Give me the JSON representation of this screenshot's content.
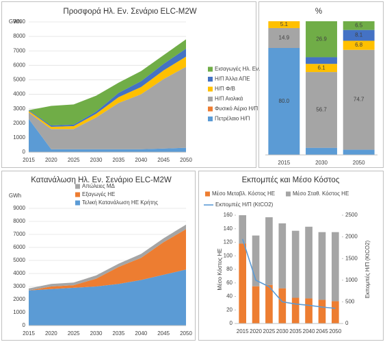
{
  "chart_data": [
    {
      "type": "area",
      "title": "Προσφορά Ηλ. Εν. Σενάριο ELC-M2W",
      "ylabel": "GWh",
      "categories": [
        "2015",
        "2020",
        "2025",
        "2030",
        "2035",
        "2040",
        "2045",
        "2050"
      ],
      "series": [
        {
          "name": "Πετρέλαιο Η/Π",
          "color": "#5b9bd5",
          "values": [
            2300,
            200,
            200,
            200,
            200,
            200,
            250,
            300
          ]
        },
        {
          "name": "Φυσικό Αέριο Η/Π",
          "color": "#ed7d31",
          "values": [
            0,
            0,
            0,
            0,
            0,
            0,
            0,
            0
          ]
        },
        {
          "name": "Η/Π Αιολικά",
          "color": "#a5a5a5",
          "values": [
            450,
            1400,
            1400,
            2200,
            3200,
            3800,
            4800,
            5600
          ]
        },
        {
          "name": "Η/Π Φ/Β",
          "color": "#ffc000",
          "values": [
            100,
            150,
            200,
            250,
            400,
            500,
            600,
            700
          ]
        },
        {
          "name": "Η/Π Άλλα ΑΠΕ",
          "color": "#4472c4",
          "values": [
            50,
            100,
            100,
            150,
            300,
            400,
            450,
            550
          ]
        },
        {
          "name": "Εισαγωγές Ηλ. Εν.",
          "color": "#70ad47",
          "values": [
            0,
            1350,
            1400,
            1100,
            700,
            700,
            600,
            650
          ]
        }
      ],
      "ylim": [
        0,
        9000
      ],
      "yticks": [
        0,
        1000,
        2000,
        3000,
        4000,
        5000,
        6000,
        7000,
        8000,
        9000
      ],
      "grid": true,
      "legend": "right"
    },
    {
      "type": "bar",
      "title": "%",
      "categories": [
        "2015",
        "2030",
        "2050"
      ],
      "series": [
        {
          "color": "#5b9bd5",
          "values": [
            80.0,
            5.3,
            3.9
          ],
          "value_labels": [
            "80.0",
            null,
            null
          ]
        },
        {
          "color": "#a5a5a5",
          "values": [
            14.9,
            56.7,
            74.7
          ],
          "value_labels": [
            "14.9",
            "56.7",
            "74.7"
          ]
        },
        {
          "color": "#ffc000",
          "values": [
            5.1,
            6.1,
            6.8
          ],
          "value_labels": [
            "5.1",
            "6.1",
            "6.8"
          ]
        },
        {
          "color": "#4472c4",
          "values": [
            0,
            5.0,
            8.1
          ],
          "value_labels": [
            null,
            null,
            "8.1"
          ]
        },
        {
          "color": "#70ad47",
          "values": [
            0,
            26.9,
            6.5
          ],
          "value_labels": [
            null,
            "26.9",
            "6.5"
          ]
        }
      ],
      "ylim": [
        0,
        100
      ]
    },
    {
      "type": "area",
      "title": "Κατανάλωση Ηλ. Εν. Σενάριο ELC-M2W",
      "ylabel": "GWh",
      "categories": [
        "2015",
        "2020",
        "2025",
        "2030",
        "2035",
        "2040",
        "2045",
        "2050"
      ],
      "series": [
        {
          "name": "Τελική Κατανάλωση ΗΕ Κρήτης",
          "color": "#5b9bd5",
          "values": [
            2700,
            2800,
            2900,
            3000,
            3200,
            3500,
            3900,
            4300
          ]
        },
        {
          "name": "Εξαγωγές ΗΕ",
          "color": "#ed7d31",
          "values": [
            0,
            200,
            200,
            600,
            1300,
            1700,
            2500,
            3100
          ]
        },
        {
          "name": "Απώλειες ΜΔ",
          "color": "#a5a5a5",
          "values": [
            150,
            200,
            200,
            250,
            250,
            300,
            300,
            350
          ]
        }
      ],
      "ylim": [
        0,
        9000
      ],
      "yticks": [
        0,
        1000,
        2000,
        3000,
        4000,
        5000,
        6000,
        7000,
        8000,
        9000
      ],
      "grid": true,
      "legend": "top-left"
    },
    {
      "type": "combo",
      "title": "Εκπομπές και Μέσο Κόστος",
      "ylabel": "Μέσο Κόστος ΗΕ",
      "y2label": "Εκπομπές Η/Π (KtCO2)",
      "categories": [
        "2015",
        "2020",
        "2025",
        "2030",
        "2035",
        "2040",
        "2045",
        "2050"
      ],
      "series": [
        {
          "name": "Μέσο Μεταβλ. Κόστος ΗΕ",
          "color": "#ed7d31",
          "values": [
            118,
            55,
            57,
            52,
            38,
            37,
            35,
            33
          ]
        },
        {
          "name": "Μέσο Σταθ. Κόστος ΗΕ",
          "color": "#a5a5a5",
          "values": [
            42,
            75,
            100,
            96,
            99,
            106,
            100,
            102
          ]
        },
        {
          "name": "Εκπομπές Η/Π (KtCO2)",
          "color": "#5b9bd5",
          "axis": "y2",
          "values": [
            1950,
            1000,
            850,
            500,
            450,
            420,
            380,
            350
          ]
        }
      ],
      "ylim": [
        0,
        160
      ],
      "yticks": [
        0,
        20,
        40,
        60,
        80,
        100,
        120,
        140,
        160
      ],
      "y2lim": [
        0,
        2500
      ],
      "y2ticks": [
        0,
        500,
        1000,
        1500,
        2000,
        2500
      ],
      "legend": "top"
    }
  ]
}
